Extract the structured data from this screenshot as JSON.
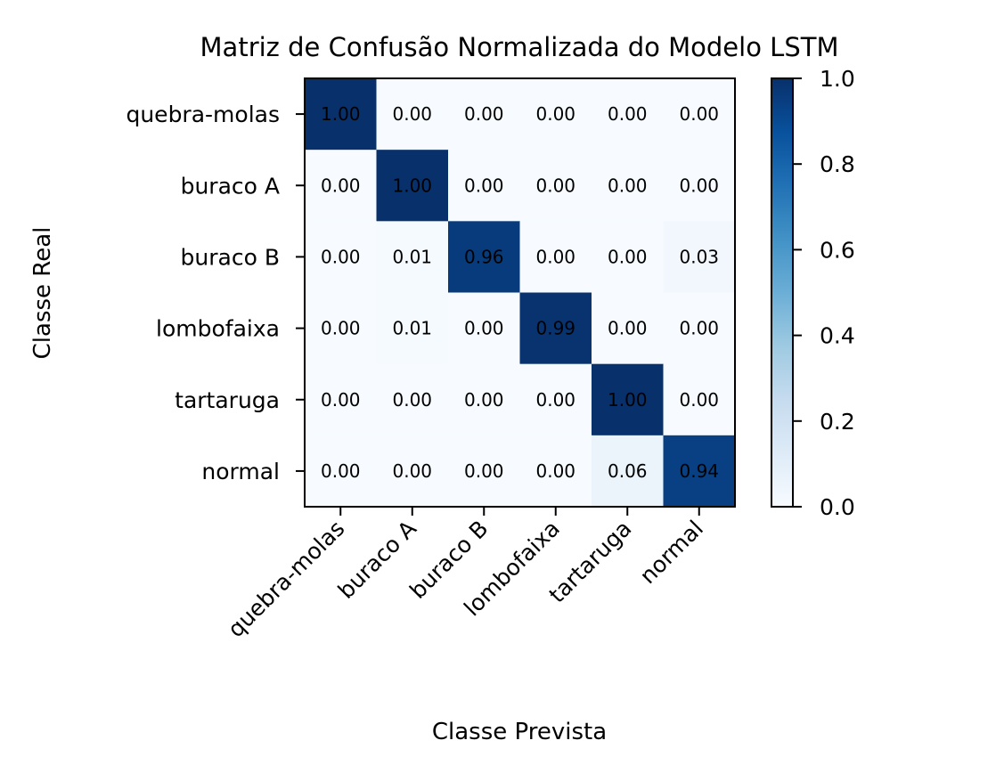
{
  "chart_data": {
    "type": "heatmap",
    "title": "Matriz de Confusão Normalizada do Modelo LSTM",
    "xlabel": "Classe Prevista",
    "ylabel": "Classe Real",
    "x_categories": [
      "quebra-molas",
      "buraco A",
      "buraco B",
      "lombofaixa",
      "tartaruga",
      "normal"
    ],
    "y_categories": [
      "quebra-molas",
      "buraco A",
      "buraco B",
      "lombofaixa",
      "tartaruga",
      "normal"
    ],
    "values": [
      [
        1.0,
        0.0,
        0.0,
        0.0,
        0.0,
        0.0
      ],
      [
        0.0,
        1.0,
        0.0,
        0.0,
        0.0,
        0.0
      ],
      [
        0.0,
        0.01,
        0.96,
        0.0,
        0.0,
        0.03
      ],
      [
        0.0,
        0.01,
        0.0,
        0.99,
        0.0,
        0.0
      ],
      [
        0.0,
        0.0,
        0.0,
        0.0,
        1.0,
        0.0
      ],
      [
        0.0,
        0.0,
        0.0,
        0.0,
        0.06,
        0.94
      ]
    ],
    "colormap": "Blues",
    "colorbar": {
      "range": [
        0.0,
        1.0
      ],
      "ticks": [
        0.0,
        0.2,
        0.4,
        0.6,
        0.8,
        1.0
      ],
      "tick_labels": [
        "0.0",
        "0.2",
        "0.4",
        "0.6",
        "0.8",
        "1.0"
      ]
    },
    "cell_label_colors": {
      "dark": "#ffffff",
      "light": "#000000"
    },
    "grid": false
  }
}
